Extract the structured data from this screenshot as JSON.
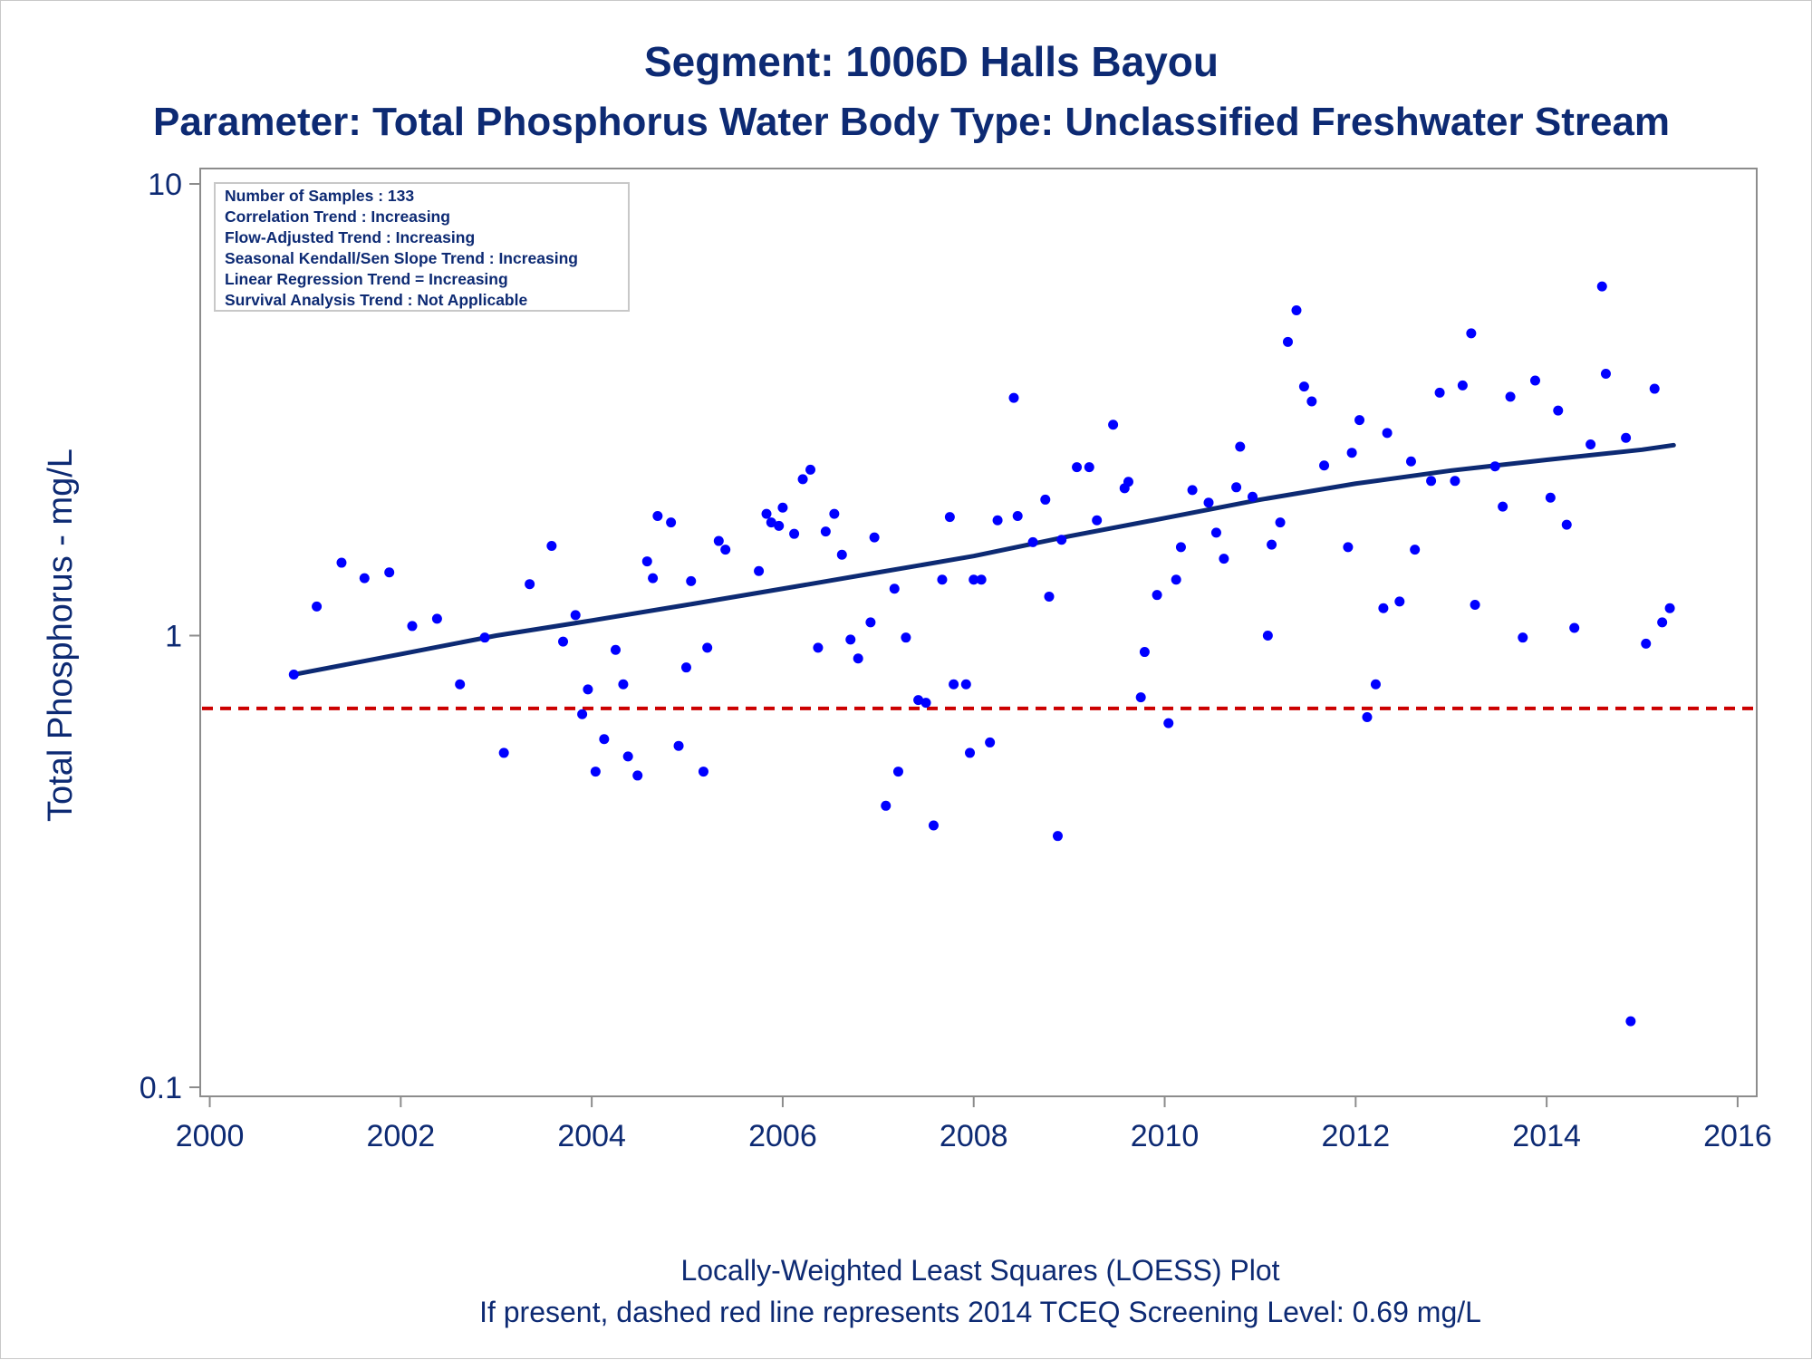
{
  "chart_data": {
    "type": "scatter",
    "title": "Segment: 1006D  Halls Bayou",
    "subtitle": "Parameter: Total Phosphorus   Water Body Type: Unclassified Freshwater Stream",
    "ylabel": "Total Phosphorus - mg/L",
    "xlabel": "",
    "y_scale": "log",
    "xlim": [
      2000,
      2016
    ],
    "ylim": [
      0.1,
      10
    ],
    "x_ticks": [
      "2000",
      "2002",
      "2004",
      "2006",
      "2008",
      "2010",
      "2012",
      "2014",
      "2016"
    ],
    "y_ticks": [
      "10",
      "1",
      "0.1"
    ],
    "grid": false,
    "info_box": [
      "Number of Samples : 133",
      "Correlation Trend : Increasing",
      "Flow-Adjusted Trend : Increasing",
      "Seasonal Kendall/Sen Slope Trend : Increasing",
      "Linear Regression Trend = Increasing",
      "Survival Analysis Trend : Not Applicable"
    ],
    "footer": [
      "Locally-Weighted Least Squares (LOESS) Plot",
      "If present, dashed red line represents 2014 TCEQ Screening Level: 0.69 mg/L"
    ],
    "screening_level": 0.69,
    "colors": {
      "points": "#0000ff",
      "trend": "#0d2a73",
      "screening": "#cc0000",
      "text": "#0d2a73",
      "axis": "#8c8c8c"
    },
    "series": [
      {
        "kind": "points",
        "x": [
          2000.88,
          2001.12,
          2001.38,
          2001.62,
          2001.88,
          2002.12,
          2002.38,
          2002.62,
          2002.88,
          2003.08,
          2003.35,
          2003.58,
          2003.7,
          2003.83,
          2003.9,
          2003.96,
          2004.04,
          2004.13,
          2004.25,
          2004.33,
          2004.38,
          2004.48,
          2004.58,
          2004.64,
          2004.69,
          2004.83,
          2004.91,
          2004.99,
          2005.04,
          2005.17,
          2005.21,
          2005.33,
          2005.4,
          2005.75,
          2005.83,
          2005.88,
          2005.96,
          2006.0,
          2006.12,
          2006.21,
          2006.29,
          2006.37,
          2006.45,
          2006.54,
          2006.62,
          2006.71,
          2006.79,
          2006.92,
          2006.96,
          2007.08,
          2007.17,
          2007.21,
          2007.29,
          2007.42,
          2007.5,
          2007.58,
          2007.67,
          2007.75,
          2007.79,
          2007.92,
          2007.96,
          2008.0,
          2008.08,
          2008.17,
          2008.25,
          2008.42,
          2008.46,
          2008.62,
          2008.75,
          2008.79,
          2008.88,
          2008.92,
          2009.08,
          2009.21,
          2009.29,
          2009.46,
          2009.58,
          2009.62,
          2009.75,
          2009.79,
          2009.92,
          2010.04,
          2010.12,
          2010.17,
          2010.29,
          2010.46,
          2010.54,
          2010.62,
          2010.75,
          2010.79,
          2010.92,
          2011.08,
          2011.12,
          2011.21,
          2011.29,
          2011.38,
          2011.46,
          2011.54,
          2011.67,
          2011.92,
          2011.96,
          2012.04,
          2012.12,
          2012.21,
          2012.29,
          2012.33,
          2012.46,
          2012.58,
          2012.62,
          2012.79,
          2012.88,
          2013.04,
          2013.12,
          2013.21,
          2013.25,
          2013.46,
          2013.54,
          2013.62,
          2013.75,
          2013.88,
          2014.04,
          2014.12,
          2014.21,
          2014.29,
          2014.46,
          2014.58,
          2014.62,
          2014.83,
          2014.88,
          2015.04,
          2015.13,
          2015.21,
          2015.29
        ],
        "y": [
          0.82,
          1.16,
          1.45,
          1.34,
          1.38,
          1.05,
          1.09,
          0.78,
          0.99,
          0.55,
          1.3,
          1.58,
          0.97,
          1.11,
          0.67,
          0.76,
          0.5,
          0.59,
          0.93,
          0.78,
          0.54,
          0.49,
          1.46,
          1.34,
          1.84,
          1.78,
          0.57,
          0.85,
          1.32,
          0.5,
          0.94,
          1.62,
          1.55,
          1.39,
          1.86,
          1.78,
          1.75,
          1.92,
          1.68,
          2.22,
          2.33,
          0.94,
          1.7,
          1.86,
          1.51,
          0.98,
          0.89,
          1.07,
          1.65,
          0.42,
          1.27,
          0.5,
          0.99,
          0.72,
          0.71,
          0.38,
          1.33,
          1.83,
          0.78,
          0.78,
          0.55,
          1.33,
          1.33,
          0.58,
          1.8,
          3.36,
          1.84,
          1.61,
          2.0,
          1.22,
          0.36,
          1.63,
          2.36,
          2.36,
          1.8,
          2.93,
          2.12,
          2.19,
          0.73,
          0.92,
          1.23,
          0.64,
          1.33,
          1.57,
          2.1,
          1.97,
          1.69,
          1.48,
          2.13,
          2.62,
          2.03,
          1.0,
          1.59,
          1.78,
          4.47,
          5.25,
          3.56,
          3.3,
          2.38,
          1.57,
          2.54,
          3.0,
          0.66,
          0.78,
          1.15,
          2.81,
          1.19,
          2.43,
          1.55,
          2.2,
          3.45,
          2.2,
          3.58,
          4.67,
          1.17,
          2.37,
          1.93,
          3.38,
          0.99,
          3.67,
          2.02,
          3.15,
          1.76,
          1.04,
          2.65,
          5.93,
          3.8,
          2.74,
          0.14,
          0.96,
          3.52,
          1.07,
          1.15
        ]
      },
      {
        "kind": "trend_line",
        "x": [
          2000.88,
          2002.0,
          2003.0,
          2004.0,
          2005.0,
          2006.0,
          2007.0,
          2008.0,
          2009.0,
          2010.0,
          2011.0,
          2012.0,
          2013.0,
          2014.0,
          2015.0,
          2015.33
        ],
        "y": [
          0.82,
          0.91,
          1.0,
          1.08,
          1.17,
          1.27,
          1.38,
          1.5,
          1.66,
          1.82,
          2.0,
          2.17,
          2.32,
          2.45,
          2.58,
          2.64
        ]
      }
    ]
  }
}
